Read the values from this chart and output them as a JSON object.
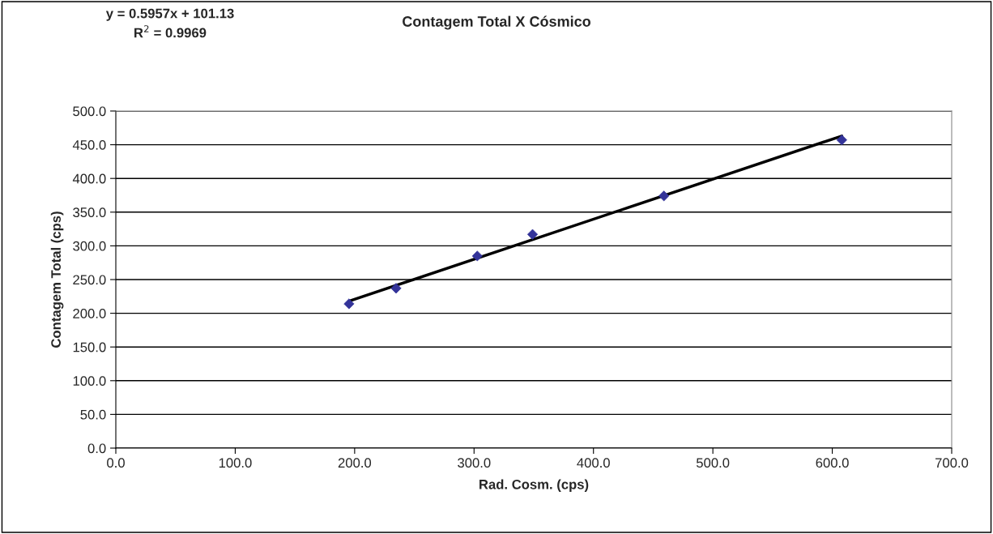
{
  "chart_data": {
    "type": "scatter",
    "title": "Contagem Total X Cósmico",
    "xlabel": "Rad. Cosm. (cps)",
    "ylabel": "Contagem Total (cps)",
    "annotations": [
      "y = 0.5957x + 101.13",
      "R$^{2}$ = 0.9969"
    ],
    "x": [
      195.3,
      234.7,
      302.7,
      349,
      459,
      608
    ],
    "series": [
      {
        "color": "#333399",
        "marker": "diamond",
        "values": [
          214,
          237,
          285,
          317,
          374,
          457
        ]
      },
      {
        "type": "line",
        "color": "#000000",
        "marker": "none",
        "line_style": "solid",
        "x": [
          195.3,
          608
        ],
        "values": [
          218,
          463
        ]
      }
    ],
    "xlim": [
      0,
      700
    ],
    "xticks": [
      {
        "value": 0,
        "label": "0.0"
      },
      {
        "value": 100,
        "label": "100.0"
      },
      {
        "value": 200,
        "label": "200.0"
      },
      {
        "value": 300,
        "label": "300.0"
      },
      {
        "value": 400,
        "label": "400.0"
      },
      {
        "value": 500,
        "label": "500.0"
      },
      {
        "value": 600,
        "label": "600.0"
      },
      {
        "value": 700,
        "label": "700.0"
      }
    ],
    "ylim": [
      0,
      500
    ],
    "yticks": [
      {
        "value": 0,
        "label": "0.0"
      },
      {
        "value": 50,
        "label": "50.0"
      },
      {
        "value": 100,
        "label": "100.0"
      },
      {
        "value": 150,
        "label": "150.0"
      },
      {
        "value": 200,
        "label": "200.0"
      },
      {
        "value": 250,
        "label": "250.0"
      },
      {
        "value": 300,
        "label": "300.0"
      },
      {
        "value": 350,
        "label": "350.0"
      },
      {
        "value": 400,
        "label": "400.0"
      },
      {
        "value": 450,
        "label": "450.0"
      },
      {
        "value": 500,
        "label": "500.0"
      }
    ],
    "grid": "y",
    "legend": false
  }
}
